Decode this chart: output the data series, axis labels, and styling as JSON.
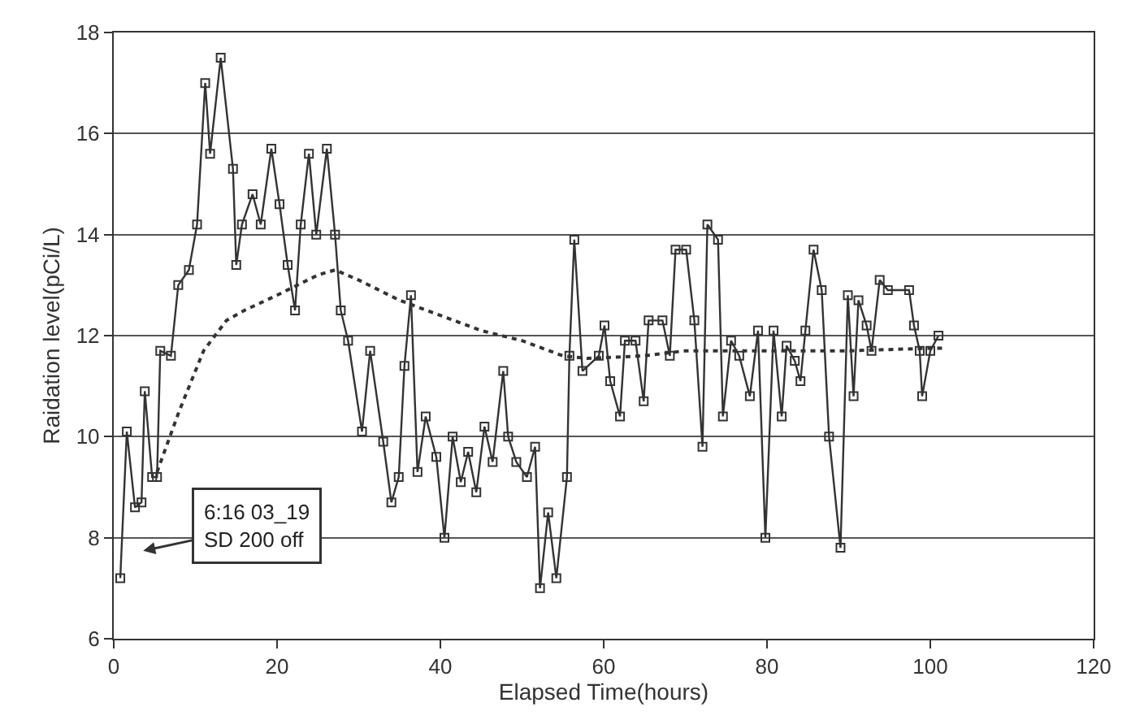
{
  "chart_data": {
    "type": "line",
    "xlabel": "Elapsed Time(hours)",
    "ylabel": "Raidation level(pCi/L)",
    "xlim": [
      0,
      120
    ],
    "xticks": [
      0,
      20,
      40,
      60,
      80,
      100,
      120
    ],
    "ylim": [
      6,
      18
    ],
    "yticks": [
      6,
      8,
      10,
      12,
      14,
      16,
      18
    ],
    "grid": "y",
    "annotations": [
      "6:16 03_19\nSD 200 off"
    ],
    "series": [
      {
        "color": "#333333",
        "marker": "square",
        "line_style": "solid",
        "x": [
          0.8,
          1.6,
          2.6,
          3.4,
          3.8,
          4.7,
          5.3,
          5.7,
          7.0,
          7.9,
          9.2,
          10.2,
          11.2,
          11.8,
          13.1,
          14.6,
          15.0,
          15.7,
          17.0,
          18.0,
          19.3,
          20.3,
          21.3,
          22.2,
          22.9,
          23.9,
          24.8,
          26.1,
          27.1,
          27.8,
          28.7,
          30.4,
          31.4,
          33.0,
          34.0,
          34.9,
          35.6,
          36.4,
          37.2,
          38.2,
          39.5,
          40.5,
          41.5,
          42.5,
          43.4,
          44.4,
          45.4,
          46.4,
          47.7,
          48.3,
          49.3,
          50.6,
          51.6,
          52.2,
          53.2,
          54.2,
          55.5,
          55.8,
          56.4,
          57.4,
          59.4,
          60.1,
          60.8,
          62.0,
          62.6,
          63.9,
          64.9,
          65.5,
          67.2,
          68.1,
          68.8,
          70.1,
          71.1,
          72.1,
          72.7,
          74.0,
          74.6,
          75.6,
          76.6,
          77.9,
          78.9,
          79.8,
          80.8,
          81.8,
          82.4,
          83.4,
          84.1,
          84.7,
          85.7,
          86.7,
          87.6,
          89.0,
          89.9,
          90.6,
          91.2,
          92.2,
          92.8,
          93.8,
          94.8,
          97.4,
          98.0,
          98.7,
          99.0,
          100.0,
          101.0
        ],
        "values": [
          7.2,
          10.1,
          8.6,
          8.7,
          10.9,
          9.2,
          9.2,
          11.7,
          11.6,
          13.0,
          13.3,
          14.2,
          17.0,
          15.6,
          17.5,
          15.3,
          13.4,
          14.2,
          14.8,
          14.2,
          15.7,
          14.6,
          13.4,
          12.5,
          14.2,
          15.6,
          14.0,
          15.7,
          14.0,
          12.5,
          11.9,
          10.1,
          11.7,
          9.9,
          8.7,
          9.2,
          11.4,
          12.8,
          9.3,
          10.4,
          9.6,
          8.0,
          10.0,
          9.1,
          9.7,
          8.9,
          10.2,
          9.5,
          11.3,
          10.0,
          9.5,
          9.2,
          9.8,
          7.0,
          8.5,
          7.2,
          9.2,
          11.6,
          13.9,
          11.3,
          11.6,
          12.2,
          11.1,
          10.4,
          11.9,
          11.9,
          10.7,
          12.3,
          12.3,
          11.6,
          13.7,
          13.7,
          12.3,
          9.8,
          14.2,
          13.9,
          10.4,
          11.9,
          11.6,
          10.8,
          12.1,
          8.0,
          12.1,
          10.4,
          11.8,
          11.5,
          11.1,
          12.1,
          13.7,
          12.9,
          10.0,
          7.8,
          12.8,
          10.8,
          12.7,
          12.2,
          11.7,
          13.1,
          12.9,
          12.9,
          12.2,
          11.7,
          10.8,
          11.7,
          12.0
        ]
      },
      {
        "color": "#333333",
        "marker": "none",
        "line_style": "dotted",
        "x": [
          5.3,
          8,
          11,
          13.8,
          16,
          20,
          25,
          27.1,
          30,
          35,
          40,
          45,
          50,
          55,
          58,
          65,
          70,
          80,
          90,
          100,
          102
        ],
        "values": [
          9.3,
          10.5,
          11.7,
          12.3,
          12.5,
          12.8,
          13.2,
          13.3,
          13.1,
          12.7,
          12.4,
          12.1,
          11.9,
          11.6,
          11.55,
          11.6,
          11.7,
          11.7,
          11.7,
          11.75,
          11.75
        ]
      }
    ]
  }
}
